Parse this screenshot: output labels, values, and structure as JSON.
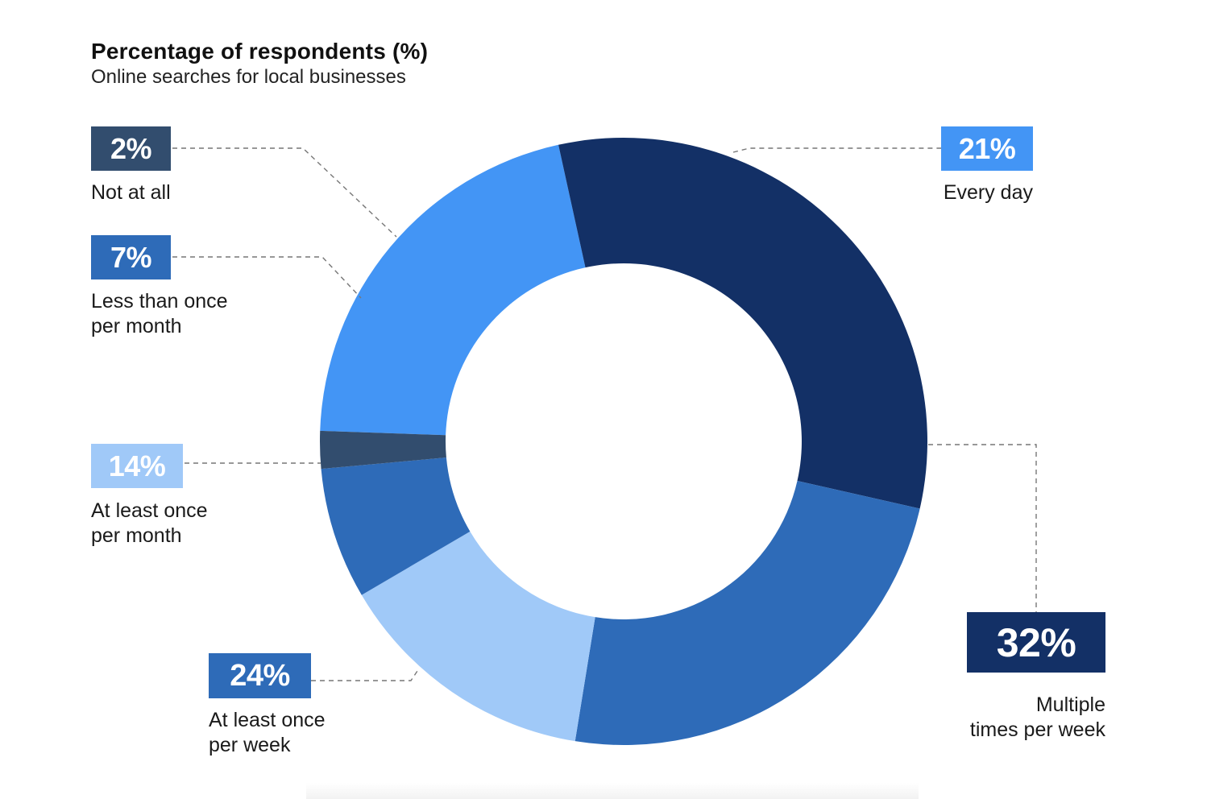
{
  "chart_data": {
    "type": "pie",
    "donut": true,
    "title": "Percentage of respondents (%)",
    "subtitle": "Online searches for local businesses",
    "categories": [
      "Every day",
      "Multiple times per week",
      "At least once per week",
      "At least once per month",
      "Less than once per month",
      "Not at all"
    ],
    "values": [
      21,
      32,
      24,
      14,
      7,
      2
    ],
    "value_labels": [
      "21%",
      "32%",
      "24%",
      "14%",
      "7%",
      "2%"
    ],
    "colors": [
      "#4395F5",
      "#133066",
      "#2E6BB8",
      "#A0C9F8",
      "#2E6BB8",
      "#324D6E"
    ],
    "label_lines": {
      "every_day": [
        "Every day"
      ],
      "multiple": [
        "Multiple",
        "times per week"
      ],
      "once_week": [
        "At least once",
        "per week"
      ],
      "once_month": [
        "At least once",
        "per month"
      ],
      "less_month": [
        "Less than once",
        "per month"
      ],
      "not_at_all": [
        "Not at all"
      ]
    }
  }
}
